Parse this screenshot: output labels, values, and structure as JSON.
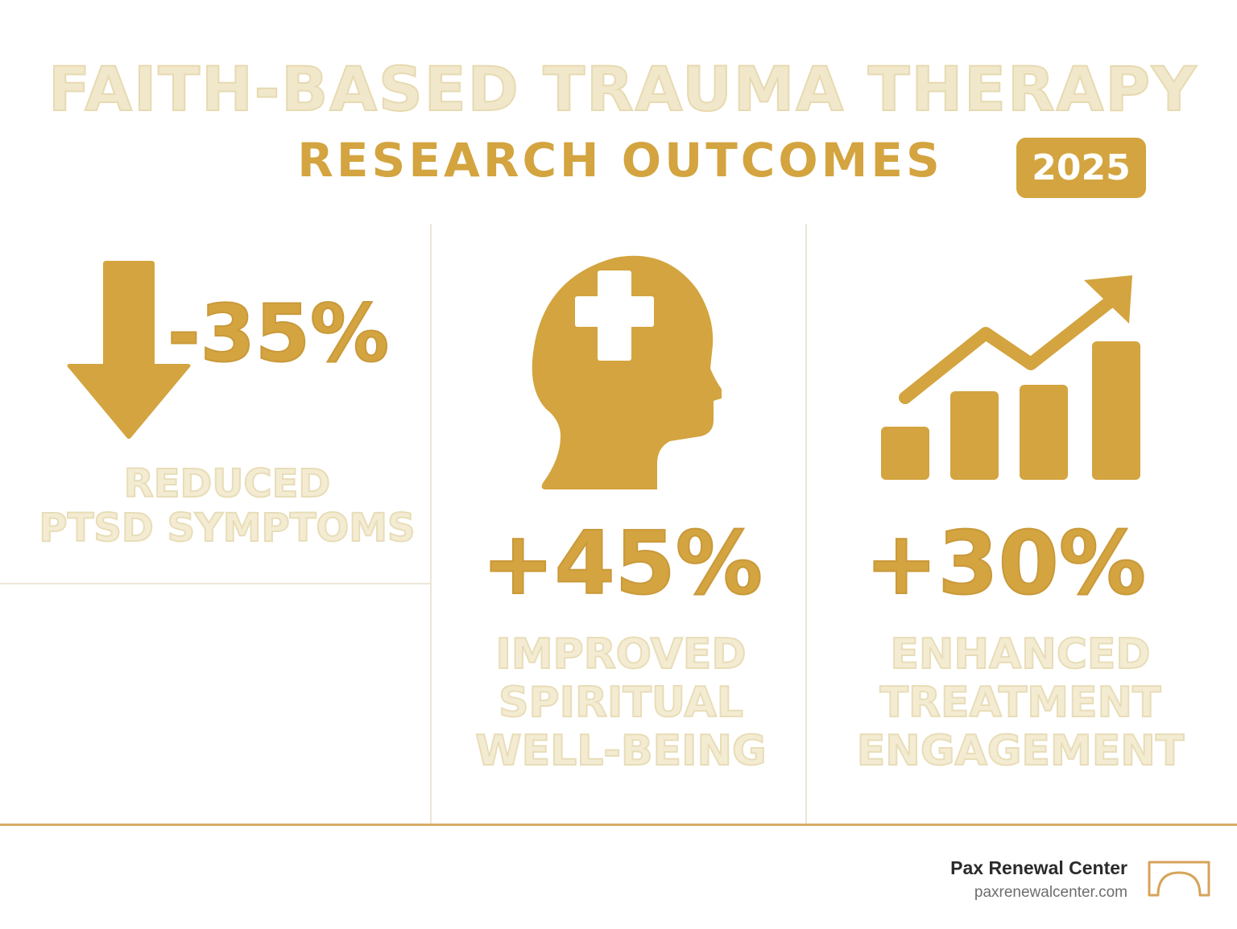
{
  "header": {
    "title": "FAITH-BASED TRAUMA THERAPY",
    "subtitle": "RESEARCH OUTCOMES",
    "year": "2025"
  },
  "stats": [
    {
      "value": "-35%",
      "label_lines": [
        "REDUCED",
        "PTSD SYMPTOMS"
      ],
      "icon": "arrow-down-icon"
    },
    {
      "value": "+45%",
      "label_lines": [
        "IMPROVED",
        "SPIRITUAL",
        "WELL-BEING"
      ],
      "icon": "head-with-cross-icon"
    },
    {
      "value": "+30%",
      "label_lines": [
        "ENHANCED",
        "TREATMENT",
        "ENGAGEMENT"
      ],
      "icon": "bar-chart-trend-up-icon"
    }
  ],
  "footer": {
    "brand_name": "Pax Renewal Center",
    "url": "paxrenewalcenter.com",
    "logo_icon": "arch-logo-icon"
  },
  "colors": {
    "accent_gold": "#d3a43f",
    "pale_gold": "#f1e8cb",
    "divider": "#ece6d6",
    "footer_rule": "#d6ad66"
  }
}
